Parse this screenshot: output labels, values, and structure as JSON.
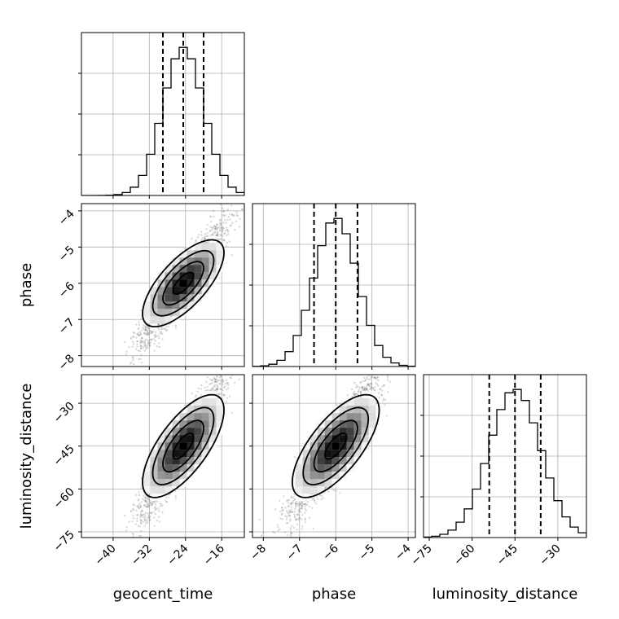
{
  "chart_data": {
    "type": "corner",
    "parameters": [
      {
        "label": "geocent_time",
        "range": [
          -47,
          -11
        ],
        "ticks": [
          -40,
          -32,
          -24,
          -16
        ],
        "tick_labels": [
          "−40",
          "−32",
          "−24",
          "−16"
        ],
        "mean": -24.5,
        "std": 4.5,
        "quantiles": [
          -29,
          -24.5,
          -20
        ]
      },
      {
        "label": "phase",
        "range": [
          -8.3,
          -3.8
        ],
        "ticks": [
          -8,
          -7,
          -6,
          -5,
          -4
        ],
        "tick_labels": [
          "−8",
          "−7",
          "−6",
          "−5",
          "−4"
        ],
        "mean": -6.0,
        "std": 0.6,
        "quantiles": [
          -6.6,
          -6.0,
          -5.4
        ]
      },
      {
        "label": "luminosity_distance",
        "range": [
          -77,
          -20
        ],
        "ticks": [
          -75,
          -60,
          -45,
          -30
        ],
        "tick_labels": [
          "−75",
          "−60",
          "−45",
          "−30"
        ],
        "mean": -45,
        "std": 9,
        "quantiles": [
          -54,
          -45,
          -36
        ]
      }
    ],
    "correlation": 0.7,
    "grid": true,
    "show_contours": true,
    "show_scatter": true
  }
}
